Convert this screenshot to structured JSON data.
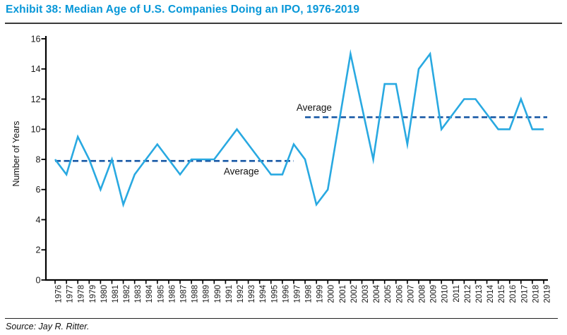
{
  "header": {
    "title": "Exhibit 38: Median Age of U.S. Companies Doing an IPO, 1976-2019",
    "title_color": "#0797d8"
  },
  "footer": {
    "source": "Source: Jay R. Ritter."
  },
  "chart_data": {
    "type": "line",
    "title": "Exhibit 38: Median Age of U.S. Companies Doing an IPO, 1976-2019",
    "xlabel": "",
    "ylabel": "Number of Years",
    "ylim": [
      0,
      16
    ],
    "ytick_step": 2,
    "grid": false,
    "legend": "none",
    "x": [
      1976,
      1977,
      1978,
      1979,
      1980,
      1981,
      1982,
      1983,
      1984,
      1985,
      1986,
      1987,
      1988,
      1989,
      1990,
      1991,
      1992,
      1993,
      1994,
      1995,
      1996,
      1997,
      1998,
      1999,
      2000,
      2001,
      2002,
      2003,
      2004,
      2005,
      2006,
      2007,
      2008,
      2009,
      2010,
      2011,
      2012,
      2013,
      2014,
      2015,
      2016,
      2017,
      2018,
      2019
    ],
    "series": [
      {
        "name": "Median age at IPO",
        "color": "#29a9e1",
        "values": [
          8,
          7,
          9.5,
          8,
          6,
          8,
          5,
          7,
          8,
          9,
          8,
          7,
          8,
          8,
          8,
          9,
          10,
          9,
          8,
          7,
          7,
          9,
          8,
          5,
          6,
          10.5,
          15,
          11.5,
          8,
          13,
          13,
          9,
          14,
          15,
          10,
          11,
          12,
          12,
          11,
          10,
          10,
          12,
          10,
          10
        ]
      }
    ],
    "reference_lines": [
      {
        "label": "Average",
        "value": 7.9,
        "x_start": 1976,
        "x_end": 1997,
        "style": "dashed",
        "color": "#1456a4",
        "label_position": "below",
        "label_x": 1992.4
      },
      {
        "label": "Average",
        "value": 10.8,
        "x_start": 1998,
        "x_end": 2019,
        "style": "dashed",
        "color": "#1456a4",
        "label_position": "above",
        "label_x": 1998.8
      }
    ],
    "axis_color": "#000000",
    "tick_label_color": "#1a1a1a"
  }
}
